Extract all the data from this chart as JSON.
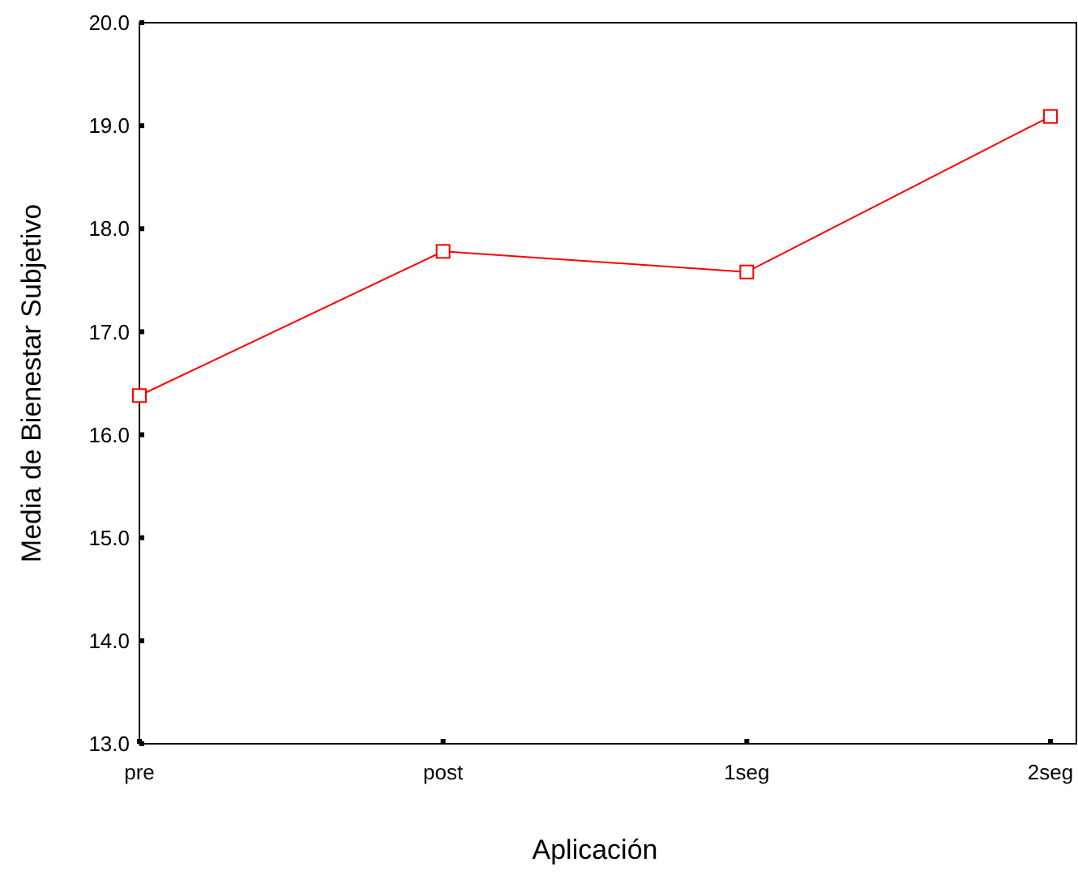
{
  "chart_data": {
    "type": "line",
    "xlabel": "Aplicación",
    "ylabel": "Media de Bienestar Subjetivo",
    "categories": [
      "pre",
      "post",
      "1seg",
      "2seg"
    ],
    "series": [
      {
        "color": "#ff0000",
        "values": [
          16.38,
          17.78,
          17.58,
          19.09
        ]
      }
    ],
    "ylim": [
      13,
      20
    ],
    "yticks": [
      {
        "value": 13,
        "label": "13.0"
      },
      {
        "value": 14,
        "label": "14.0"
      },
      {
        "value": 15,
        "label": "15.0"
      },
      {
        "value": 16,
        "label": "16.0"
      },
      {
        "value": 17,
        "label": "17.0"
      },
      {
        "value": 18,
        "label": "18.0"
      },
      {
        "value": 19,
        "label": "19.0"
      },
      {
        "value": 20,
        "label": "20.0"
      }
    ],
    "marker": "square",
    "line_style": "solid",
    "grid": false
  }
}
